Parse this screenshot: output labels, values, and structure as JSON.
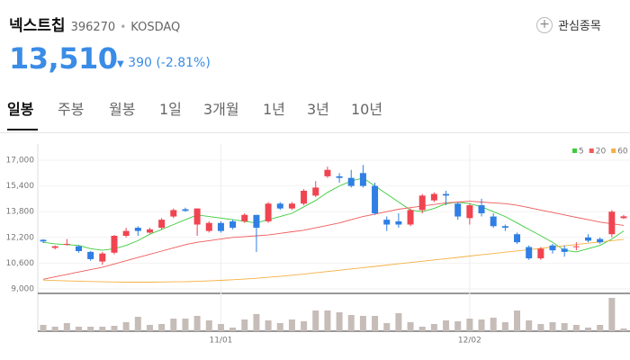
{
  "header": {
    "name": "넥스트칩",
    "code": "396270",
    "market": "KOSDAQ",
    "favorite": "관심종목",
    "price": "13,510",
    "change": "390",
    "change_pct": "(-2.81%)"
  },
  "tabs": [
    "일봉",
    "주봉",
    "월봉",
    "1일",
    "3개월",
    "1년",
    "3년",
    "10년"
  ],
  "chart_data": {
    "type": "candlestick",
    "categories": [
      null,
      null,
      null,
      null,
      null,
      null,
      null,
      null,
      null,
      null,
      null,
      null,
      null,
      null,
      null,
      "11/01",
      null,
      null,
      null,
      null,
      null,
      null,
      null,
      null,
      null,
      null,
      null,
      null,
      null,
      null,
      null,
      null,
      null,
      null,
      null,
      null,
      "12/02",
      null,
      null,
      null,
      null,
      null,
      null,
      null,
      null,
      null,
      null,
      null,
      null,
      null
    ],
    "open": [
      12050,
      11550,
      11750,
      11650,
      11300,
      10700,
      11250,
      12300,
      12800,
      12500,
      12800,
      13500,
      13950,
      13000,
      12600,
      13100,
      13200,
      13200,
      13600,
      13200,
      14300,
      14000,
      14300,
      14800,
      16000,
      16000,
      15900,
      16200,
      15400,
      13300,
      13200,
      13000,
      13900,
      14500,
      14900,
      14300,
      13400,
      14200,
      13500,
      12900,
      12400,
      11600,
      10900,
      11700,
      11500,
      11600,
      12200,
      12100,
      12400,
      13400
    ],
    "high": [
      12100,
      11700,
      12100,
      11700,
      11350,
      11300,
      12350,
      12800,
      12900,
      12800,
      13400,
      14000,
      14050,
      14000,
      13200,
      13200,
      13300,
      13700,
      13600,
      14400,
      14400,
      14400,
      15200,
      15700,
      16600,
      16200,
      16400,
      16700,
      15600,
      13500,
      13700,
      14000,
      14900,
      15000,
      15100,
      14400,
      14300,
      14600,
      13700,
      13000,
      12500,
      11700,
      11600,
      11800,
      11700,
      11900,
      12400,
      12200,
      13900,
      13600
    ],
    "low": [
      11850,
      11450,
      11700,
      11250,
      10750,
      10500,
      11150,
      12200,
      12300,
      12450,
      12700,
      13400,
      13800,
      12300,
      12500,
      12500,
      12700,
      13100,
      11300,
      13100,
      13900,
      13900,
      14200,
      14700,
      15900,
      15600,
      15300,
      15300,
      13600,
      12600,
      12800,
      12900,
      13700,
      14400,
      14200,
      13300,
      13000,
      13500,
      12800,
      12600,
      11800,
      10800,
      10800,
      11200,
      11000,
      11400,
      11900,
      11800,
      12200,
      13350
    ],
    "close": [
      11950,
      11650,
      11800,
      11350,
      10850,
      11200,
      12300,
      12600,
      12600,
      12700,
      13300,
      13900,
      13850,
      14000,
      13100,
      12600,
      12800,
      13600,
      12800,
      14300,
      14000,
      14300,
      15100,
      15300,
      16400,
      15900,
      15400,
      15400,
      13700,
      13000,
      13000,
      13900,
      14800,
      14900,
      14800,
      13500,
      14200,
      13700,
      12900,
      12800,
      11900,
      10900,
      11500,
      11400,
      11300,
      11650,
      12000,
      11900,
      13800,
      13510
    ],
    "up_color": "#f04451",
    "down_color": "#2f7fe4",
    "volume": [
      7,
      5,
      9,
      5,
      5,
      5,
      6,
      10,
      16,
      7,
      8,
      14,
      14,
      17,
      12,
      8,
      4,
      13,
      19,
      12,
      9,
      13,
      11,
      23,
      23,
      21,
      18,
      17,
      17,
      9,
      20,
      10,
      5,
      8,
      12,
      11,
      14,
      13,
      15,
      10,
      23,
      12,
      8,
      10,
      9,
      7,
      4,
      7,
      37,
      3
    ],
    "volume_color": "#c6bcb8",
    "volume_ylim": [
      0,
      40
    ],
    "series": [
      {
        "name": "5",
        "color": "#3ccc3c",
        "values": [
          11900,
          11800,
          11750,
          11700,
          11500,
          11400,
          11500,
          11700,
          12000,
          12400,
          12700,
          13000,
          13300,
          13600,
          13500,
          13400,
          13300,
          13200,
          13100,
          13300,
          13500,
          13700,
          14100,
          14500,
          15000,
          15400,
          15700,
          15900,
          15400,
          14900,
          14400,
          13900,
          13800,
          14000,
          14300,
          14400,
          14300,
          14100,
          13800,
          13500,
          13100,
          12700,
          12300,
          11900,
          11400,
          11300,
          11500,
          11700,
          12100,
          12600
        ]
      },
      {
        "name": "20",
        "color": "#f05a5a",
        "values": [
          9600,
          9750,
          9900,
          10050,
          10200,
          10350,
          10550,
          10750,
          10950,
          11150,
          11350,
          11550,
          11750,
          11900,
          12000,
          12100,
          12200,
          12250,
          12300,
          12350,
          12450,
          12550,
          12650,
          12800,
          12950,
          13100,
          13300,
          13500,
          13650,
          13800,
          13950,
          14050,
          14150,
          14250,
          14350,
          14400,
          14450,
          14400,
          14350,
          14300,
          14200,
          14050,
          13900,
          13750,
          13600,
          13450,
          13300,
          13150,
          13050,
          12950
        ]
      },
      {
        "name": "60",
        "color": "#f5b042",
        "values": [
          9550,
          9520,
          9500,
          9480,
          9460,
          9440,
          9430,
          9420,
          9420,
          9420,
          9430,
          9440,
          9450,
          9470,
          9500,
          9530,
          9570,
          9610,
          9660,
          9720,
          9780,
          9850,
          9920,
          10000,
          10080,
          10160,
          10240,
          10320,
          10400,
          10480,
          10560,
          10640,
          10720,
          10800,
          10880,
          10960,
          11040,
          11120,
          11200,
          11280,
          11360,
          11440,
          11520,
          11600,
          11680,
          11760,
          11840,
          11920,
          12000,
          12080
        ]
      }
    ],
    "ylim": [
      9000,
      17000
    ],
    "yticks": [
      {
        "value": 9000,
        "label": "9,000"
      },
      {
        "value": 10600,
        "label": "10,600"
      },
      {
        "value": 12200,
        "label": "12,200"
      },
      {
        "value": 13800,
        "label": "13,800"
      },
      {
        "value": 15400,
        "label": "15,400"
      },
      {
        "value": 17000,
        "label": "17,000"
      }
    ],
    "legend": "top-right"
  }
}
